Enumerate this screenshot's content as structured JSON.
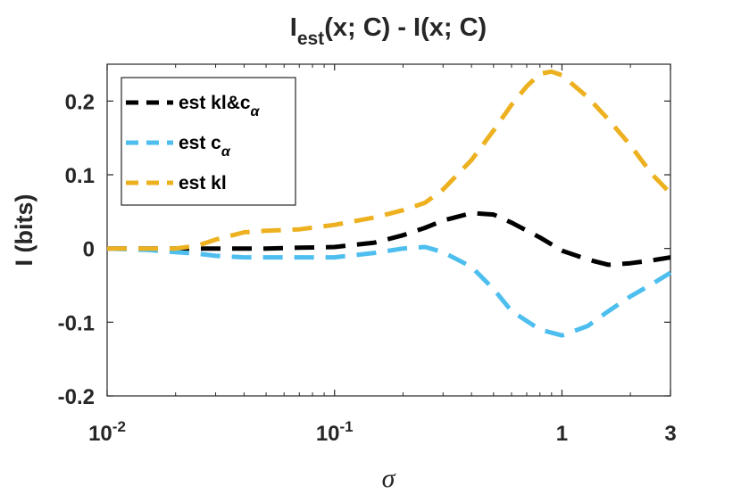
{
  "chart_data": {
    "type": "line",
    "title": {
      "main": "I",
      "sub": "est",
      "rest": "(x; C) - I(x; C)"
    },
    "xlabel": "σ",
    "ylabel": "I (bits)",
    "xscale": "log",
    "xlim": [
      0.01,
      3
    ],
    "ylim": [
      -0.2,
      0.25
    ],
    "xticks": [
      {
        "value": 0.01,
        "base": "10",
        "exp": "-2"
      },
      {
        "value": 0.1,
        "base": "10",
        "exp": "-1"
      },
      {
        "value": 1,
        "base": "1",
        "exp": ""
      },
      {
        "value": 3,
        "base": "3",
        "exp": ""
      }
    ],
    "yticks": [
      {
        "value": -0.2,
        "label": "-0.2"
      },
      {
        "value": -0.1,
        "label": "-0.1"
      },
      {
        "value": 0,
        "label": "0"
      },
      {
        "value": 0.1,
        "label": "0.1"
      },
      {
        "value": 0.2,
        "label": "0.2"
      }
    ],
    "legend_position": "top-left",
    "series": [
      {
        "name": "est kl&c",
        "name_sub": "α",
        "color": "#000000",
        "x": [
          0.01,
          0.015,
          0.02,
          0.025,
          0.03,
          0.04,
          0.05,
          0.07,
          0.1,
          0.15,
          0.2,
          0.25,
          0.3,
          0.4,
          0.5,
          0.6,
          0.8,
          1.0,
          1.3,
          1.6,
          2.0,
          2.5,
          3.0
        ],
        "values": [
          0.0,
          0.0,
          0.0,
          0.0,
          0.0,
          0.0,
          0.0,
          0.001,
          0.002,
          0.008,
          0.018,
          0.028,
          0.038,
          0.048,
          0.046,
          0.035,
          0.015,
          -0.003,
          -0.015,
          -0.022,
          -0.02,
          -0.016,
          -0.012
        ]
      },
      {
        "name": "est c",
        "name_sub": "α",
        "color": "#4dbeee",
        "x": [
          0.01,
          0.015,
          0.02,
          0.025,
          0.03,
          0.04,
          0.05,
          0.07,
          0.1,
          0.15,
          0.2,
          0.25,
          0.3,
          0.4,
          0.5,
          0.6,
          0.8,
          1.0,
          1.3,
          1.6,
          2.0,
          2.5,
          3.0
        ],
        "values": [
          0.0,
          -0.002,
          -0.005,
          -0.007,
          -0.01,
          -0.012,
          -0.012,
          -0.012,
          -0.012,
          -0.006,
          0.0,
          0.002,
          -0.005,
          -0.025,
          -0.055,
          -0.085,
          -0.11,
          -0.118,
          -0.105,
          -0.085,
          -0.065,
          -0.048,
          -0.033
        ]
      },
      {
        "name": "est kl",
        "name_sub": "",
        "color": "#edb120",
        "x": [
          0.01,
          0.015,
          0.02,
          0.025,
          0.03,
          0.04,
          0.05,
          0.07,
          0.1,
          0.15,
          0.2,
          0.25,
          0.3,
          0.4,
          0.5,
          0.6,
          0.7,
          0.8,
          0.9,
          1.0,
          1.3,
          1.6,
          2.0,
          2.5,
          3.0
        ],
        "values": [
          0.0,
          0.0,
          0.0,
          0.004,
          0.012,
          0.022,
          0.024,
          0.026,
          0.032,
          0.042,
          0.052,
          0.062,
          0.08,
          0.12,
          0.16,
          0.195,
          0.22,
          0.237,
          0.24,
          0.235,
          0.205,
          0.175,
          0.14,
          0.1,
          0.075
        ]
      }
    ]
  }
}
